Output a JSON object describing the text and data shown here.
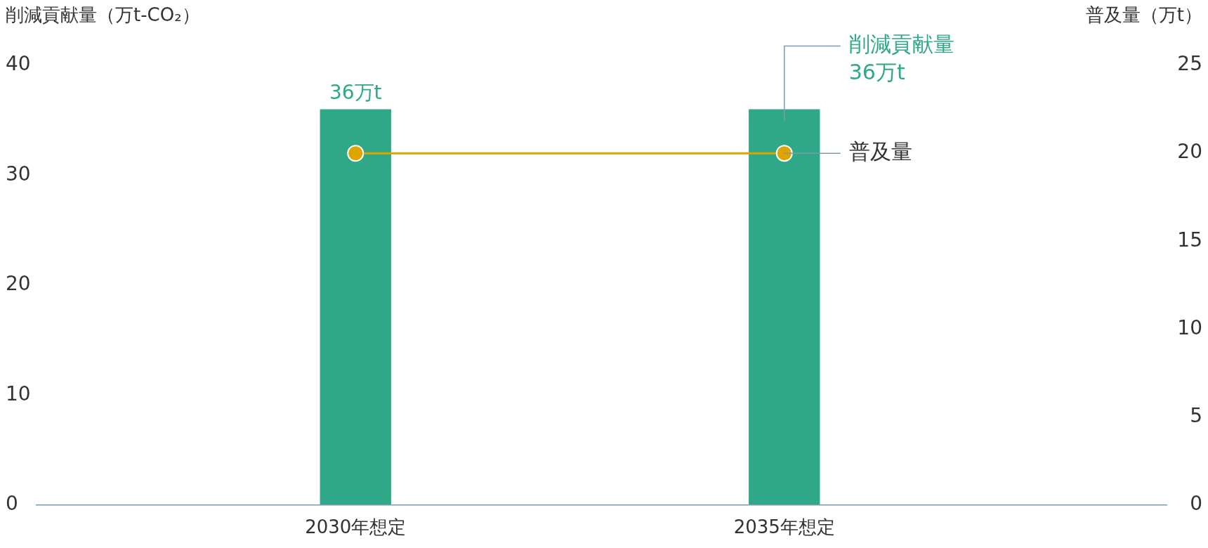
{
  "chart_data": {
    "type": "bar",
    "ylabel": "削減貢献量（万t-CO₂）",
    "y2label": "普及量（万t）",
    "categories": [
      "2030年想定",
      "2035年想定"
    ],
    "series": [
      {
        "name": "削減貢献量",
        "color": "#2ea886",
        "values": [
          36,
          36
        ],
        "value_labels": [
          "36万t",
          null
        ]
      },
      {
        "name": "普及量",
        "type": "line",
        "axis": "y2",
        "color": "#dca500",
        "values": [
          20,
          20
        ]
      }
    ],
    "ylim": [
      0,
      40
    ],
    "yticks": [
      0,
      10,
      20,
      30,
      40
    ],
    "y2lim": [
      0,
      25
    ],
    "y2ticks": [
      0,
      5,
      10,
      15,
      20,
      25
    ],
    "marker": "circle",
    "annotations": [
      "36万t"
    ]
  }
}
